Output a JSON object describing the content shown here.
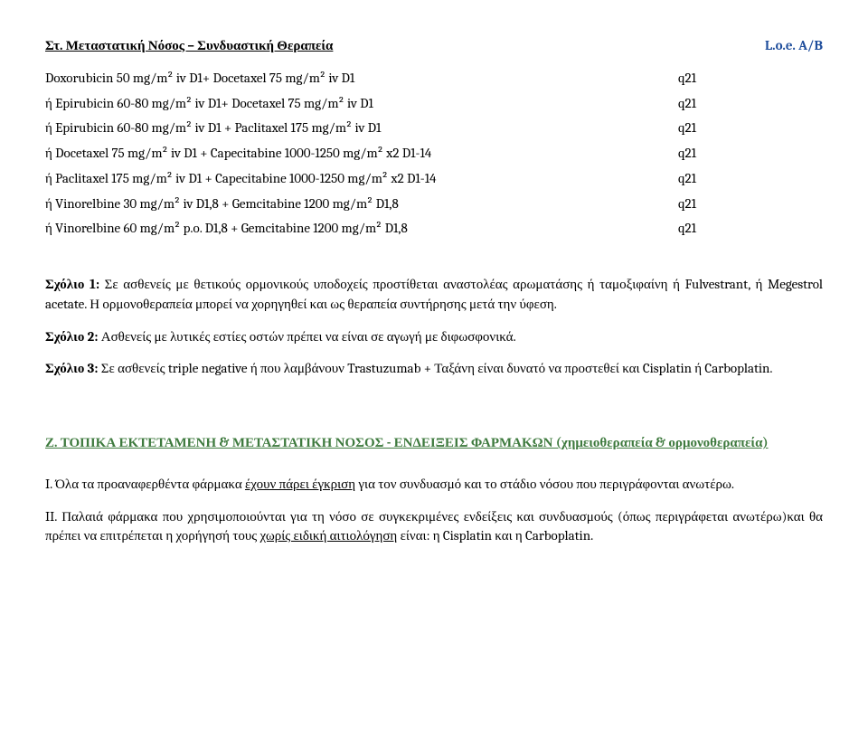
{
  "header": {
    "title": "Στ. Μεταστατική Νόσος – Συνδυαστική Θεραπεία",
    "loe": "L.o.e. A/B"
  },
  "doses": [
    {
      "text": "Doxorubicin 50 mg/m² iv D1+ Docetaxel 75 mg/m² iv D1",
      "code": "q21"
    },
    {
      "text": "ή Epirubicin 60-80 mg/m² iv D1+ Docetaxel 75 mg/m² iv D1",
      "code": "q21"
    },
    {
      "text": "ή Epirubicin 60-80 mg/m² iv D1 + Paclitaxel 175 mg/m² iv D1",
      "code": "q21"
    },
    {
      "text": "ή Docetaxel 75 mg/m² iv D1 + Capecitabine 1000-1250 mg/m² x2 D1-14",
      "code": "q21"
    },
    {
      "text": "ή Paclitaxel 175 mg/m² iv D1 + Capecitabine 1000-1250 mg/m² x2 D1-14",
      "code": "q21"
    },
    {
      "text": "ή Vinorelbine 30 mg/m² iv D1,8 + Gemcitabine 1200 mg/m² D1,8",
      "code": "q21"
    },
    {
      "text": "ή Vinorelbine 60 mg/m² p.o. D1,8 + Gemcitabine 1200 mg/m² D1,8",
      "code": "q21"
    }
  ],
  "comments": {
    "c1_label": "Σχόλιο 1:",
    "c1_text": " Σε ασθενείς με θετικούς ορμονικούς υποδοχείς προστίθεται αναστολέας αρωματάσης ή ταμοξιφαίνη ή Fulvestrant, ή Megestrol acetate. Η ορμονοθεραπεία μπορεί να χορηγηθεί και ως θεραπεία συντήρησης μετά την ύφεση.",
    "c2_label": "Σχόλιο 2:",
    "c2_text": " Ασθενείς με λυτικές εστίες οστών πρέπει να είναι σε αγωγή με διφωσφονικά.",
    "c3_label": "Σχόλιο 3:",
    "c3_text": " Σε ασθενείς triple negative ή που λαμβάνουν Trastuzumab + Ταξάνη είναι δυνατό να προστεθεί και Cisplatin ή Carboplatin."
  },
  "sectionZ": {
    "title": "Ζ. ΤΟΠΙΚΑ ΕΚΤΕΤΑΜΕΝΗ & ΜΕΤΑΣΤΑΤΙΚΗ ΝΟΣΟΣ - ΕΝΔΕΙΞΕΙΣ ΦΑΡΜΑΚΩΝ (χημειοθεραπεία & ορμονοθεραπεία)",
    "p1_pre": "I. Όλα τα προαναφερθέντα φάρμακα ",
    "p1_ul": "έχουν πάρει έγκριση",
    "p1_post": " για τον συνδυασμό και το στάδιο νόσου που περιγράφονται ανωτέρω.",
    "p2_pre": "II. Παλαιά φάρμακα που χρησιμοποιούνται για τη νόσο σε συγκεκριμένες ενδείξεις και συνδυασμούς (όπως περιγράφεται ανωτέρω)και θα πρέπει να επιτρέπεται η χορήγησή τους ",
    "p2_ul": "χωρίς ειδική αιτιολόγηση",
    "p2_post": "  είναι: η Cisplatin και η Carboplatin."
  }
}
